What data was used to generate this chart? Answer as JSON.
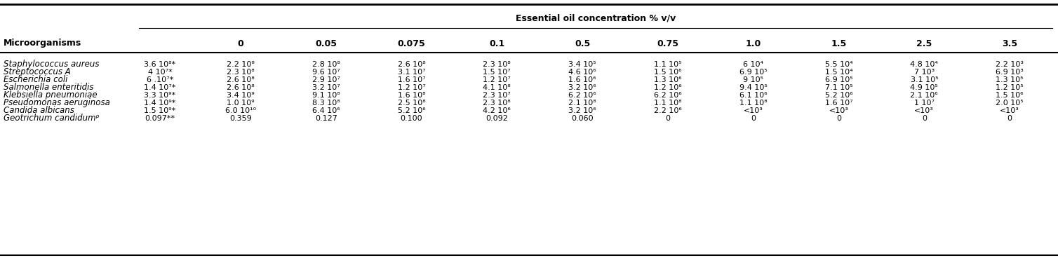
{
  "span_header": "Essential oil concentration % v/v",
  "col_headers": [
    "0",
    "0.05",
    "0.075",
    "0.1",
    "0.5",
    "0.75",
    "1.0",
    "1.5",
    "2.5",
    "3.5"
  ],
  "row_labels": [
    "Staphylococcus aureus",
    "Streptococcus A",
    "Escherichia coli",
    "Salmonella enteritidis",
    "Klebsiella pneumoniae",
    "Pseudomonas aeruginosa",
    "Candida albicans",
    "Geotrichum candidumᵖ"
  ],
  "inoculum_values": [
    "3.6 10⁸*",
    "4 10⁷*",
    "6 .10⁷*",
    "1.4 10⁷*",
    "3.3 10⁹*",
    "1.4 10⁹*",
    "1.5 10⁹*",
    "0.097**"
  ],
  "data": [
    [
      "2.2 10⁸",
      "2.8 10⁸",
      "2.6 10⁸",
      "2.3 10⁸",
      "3.4 10⁵",
      "1.1 10⁵",
      "6 10⁴",
      "5.5 10⁴",
      "4.8 10⁴",
      "2.2 10³"
    ],
    [
      "2.3 10⁸",
      "9.6 10⁷",
      "3.1 10⁷",
      "1.5 10⁷",
      "4.6 10⁶",
      "1.5 10⁶",
      "6.9 10⁵",
      "1.5 10⁴",
      "7 10³",
      "6.9 10³"
    ],
    [
      "2.6 10⁸",
      "2.9 10⁷",
      "1.6 10⁷",
      "1.2 10⁷",
      "1.6 10⁶",
      "1.3 10⁶",
      "9 10⁵",
      "6.9 10⁵",
      "3.1 10⁵",
      "1.3 10⁵"
    ],
    [
      "2.6 10⁸",
      "3.2 10⁷",
      "1.2 10⁷",
      "4.1 10⁸",
      "3.2 10⁶",
      "1.2 10⁶",
      "9.4 10⁵",
      "7.1 10⁵",
      "4.9 10⁵",
      "1.2 10⁵"
    ],
    [
      "3.4 10⁹",
      "9.1 10⁸",
      "1.6 10⁸",
      "2.3 10⁷",
      "6.2 10⁶",
      "6.2 10⁶",
      "6.1 10⁶",
      "5.2 10⁶",
      "2.1 10⁶",
      "1.5 10⁶"
    ],
    [
      "1.0 10⁹",
      "8.3 10⁸",
      "2.5 10⁸",
      "2.3 10⁸",
      "2.1 10⁸",
      "1.1 10⁸",
      "1.1 10⁸",
      "1.6 10⁷",
      "1 10⁷",
      "2.0 10⁵"
    ],
    [
      "6.0 10¹⁰",
      "6.4 10⁶",
      "5.2 10⁶",
      "4.2 10⁶",
      "3.2 10⁶",
      "2.2 10⁶",
      "<10³",
      "<10³",
      "<10³",
      "<10³"
    ],
    [
      "0.359",
      "0.127",
      "0.100",
      "0.092",
      "0.060",
      "0",
      "0",
      "0",
      "0",
      "0"
    ]
  ],
  "microorganisms_label": "Microorganisms",
  "fig_width": 15.08,
  "fig_height": 3.68,
  "dpi": 100
}
